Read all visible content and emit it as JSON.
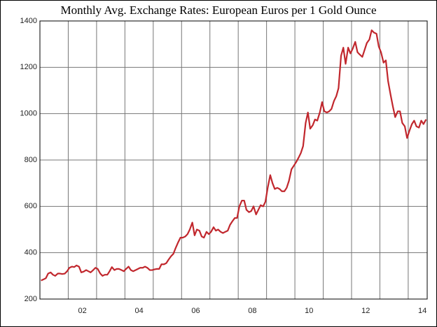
{
  "chart_data": {
    "type": "line",
    "title": "Monthly Avg. Exchange Rates: European Euros per 1 Gold Ounce",
    "color": "#c1272d",
    "xlim": [
      2001,
      2014.67
    ],
    "xgrid": [
      2002,
      2003,
      2004,
      2005,
      2006,
      2007,
      2008,
      2009,
      2010,
      2011,
      2012,
      2013,
      2014
    ],
    "xticks": [
      {
        "value": 2002.5,
        "label": "02"
      },
      {
        "value": 2004.5,
        "label": "04"
      },
      {
        "value": 2006.5,
        "label": "06"
      },
      {
        "value": 2008.5,
        "label": "08"
      },
      {
        "value": 2010.5,
        "label": "10"
      },
      {
        "value": 2012.5,
        "label": "12"
      },
      {
        "value": 2014.5,
        "label": "14"
      }
    ],
    "ylim": [
      200,
      1400
    ],
    "yticks": [
      200,
      400,
      600,
      800,
      1000,
      1200,
      1400
    ],
    "grid": true,
    "x": [
      2001.04,
      2001.13,
      2001.21,
      2001.29,
      2001.38,
      2001.46,
      2001.54,
      2001.63,
      2001.71,
      2001.79,
      2001.88,
      2001.96,
      2002.04,
      2002.13,
      2002.21,
      2002.29,
      2002.38,
      2002.46,
      2002.54,
      2002.63,
      2002.71,
      2002.79,
      2002.88,
      2002.96,
      2003.04,
      2003.13,
      2003.21,
      2003.29,
      2003.38,
      2003.46,
      2003.54,
      2003.63,
      2003.71,
      2003.79,
      2003.88,
      2003.96,
      2004.04,
      2004.13,
      2004.21,
      2004.29,
      2004.38,
      2004.46,
      2004.54,
      2004.63,
      2004.71,
      2004.79,
      2004.88,
      2004.96,
      2005.04,
      2005.13,
      2005.21,
      2005.29,
      2005.38,
      2005.46,
      2005.54,
      2005.63,
      2005.71,
      2005.79,
      2005.88,
      2005.96,
      2006.04,
      2006.13,
      2006.21,
      2006.29,
      2006.38,
      2006.46,
      2006.54,
      2006.63,
      2006.71,
      2006.79,
      2006.88,
      2006.96,
      2007.04,
      2007.13,
      2007.21,
      2007.29,
      2007.38,
      2007.46,
      2007.54,
      2007.63,
      2007.71,
      2007.79,
      2007.88,
      2007.96,
      2008.04,
      2008.13,
      2008.21,
      2008.29,
      2008.38,
      2008.46,
      2008.54,
      2008.63,
      2008.71,
      2008.79,
      2008.88,
      2008.96,
      2009.04,
      2009.13,
      2009.21,
      2009.29,
      2009.38,
      2009.46,
      2009.54,
      2009.63,
      2009.71,
      2009.79,
      2009.88,
      2009.96,
      2010.04,
      2010.13,
      2010.21,
      2010.29,
      2010.38,
      2010.46,
      2010.54,
      2010.63,
      2010.71,
      2010.79,
      2010.88,
      2010.96,
      2011.04,
      2011.13,
      2011.21,
      2011.29,
      2011.38,
      2011.46,
      2011.54,
      2011.63,
      2011.71,
      2011.79,
      2011.88,
      2011.96,
      2012.04,
      2012.13,
      2012.21,
      2012.29,
      2012.38,
      2012.46,
      2012.54,
      2012.63,
      2012.71,
      2012.79,
      2012.88,
      2012.96,
      2013.04,
      2013.13,
      2013.21,
      2013.29,
      2013.38,
      2013.46,
      2013.54,
      2013.63,
      2013.71,
      2013.79,
      2013.88,
      2013.96,
      2014.04,
      2014.13,
      2014.21,
      2014.29,
      2014.38,
      2014.46,
      2014.54,
      2014.63
    ],
    "values": [
      280,
      285,
      290,
      310,
      315,
      305,
      300,
      310,
      310,
      308,
      310,
      320,
      335,
      340,
      338,
      345,
      340,
      315,
      318,
      325,
      320,
      315,
      325,
      335,
      330,
      310,
      300,
      305,
      305,
      320,
      338,
      325,
      330,
      330,
      325,
      320,
      330,
      340,
      325,
      320,
      325,
      330,
      335,
      335,
      340,
      335,
      325,
      325,
      328,
      330,
      330,
      350,
      350,
      355,
      370,
      385,
      395,
      420,
      445,
      465,
      465,
      470,
      480,
      500,
      530,
      475,
      500,
      495,
      470,
      465,
      490,
      480,
      490,
      510,
      495,
      500,
      490,
      485,
      490,
      495,
      520,
      535,
      550,
      550,
      600,
      625,
      625,
      585,
      575,
      580,
      600,
      565,
      585,
      605,
      600,
      620,
      680,
      735,
      700,
      675,
      680,
      675,
      665,
      665,
      680,
      710,
      760,
      775,
      790,
      810,
      830,
      860,
      960,
      1005,
      935,
      950,
      975,
      970,
      1005,
      1050,
      1010,
      1005,
      1010,
      1020,
      1055,
      1075,
      1110,
      1250,
      1285,
      1215,
      1285,
      1260,
      1280,
      1310,
      1265,
      1255,
      1245,
      1275,
      1305,
      1320,
      1360,
      1350,
      1345,
      1290,
      1265,
      1220,
      1230,
      1140,
      1080,
      1030,
      985,
      1010,
      1010,
      960,
      945,
      895,
      925,
      955,
      970,
      945,
      940,
      970,
      955,
      975
    ]
  }
}
